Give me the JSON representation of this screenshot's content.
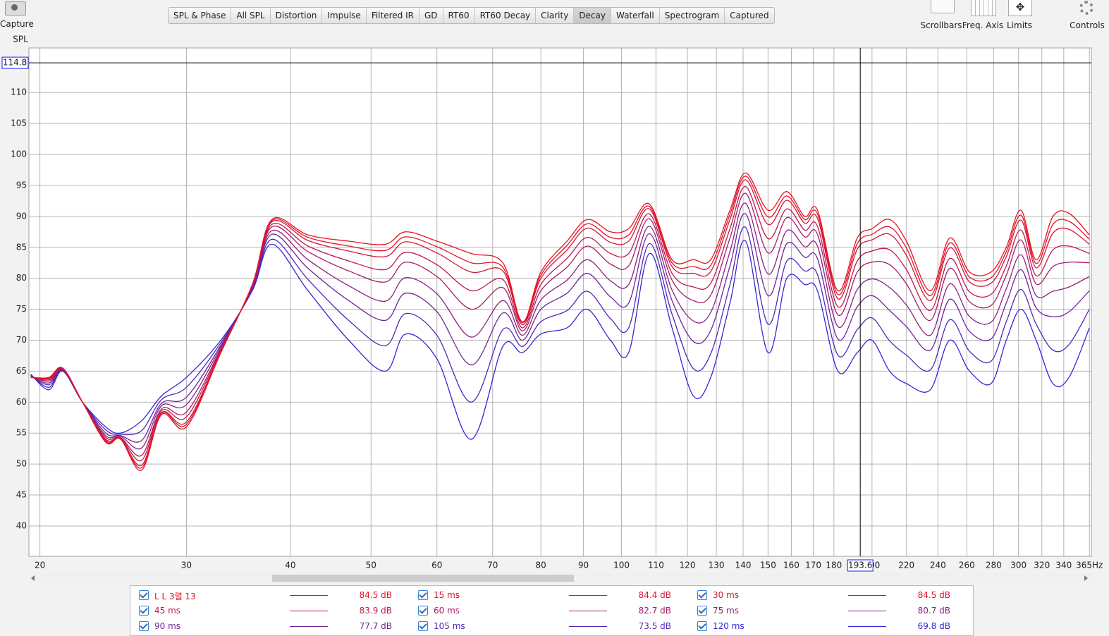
{
  "toolbar": {
    "capture": "Capture",
    "tabs": [
      {
        "label": "SPL & Phase"
      },
      {
        "label": "All SPL"
      },
      {
        "label": "Distortion"
      },
      {
        "label": "Impulse"
      },
      {
        "label": "Filtered IR"
      },
      {
        "label": "GD"
      },
      {
        "label": "RT60"
      },
      {
        "label": "RT60 Decay"
      },
      {
        "label": "Clarity"
      },
      {
        "label": "Decay",
        "active": true
      },
      {
        "label": "Waterfall"
      },
      {
        "label": "Spectrogram"
      },
      {
        "label": "Captured"
      }
    ],
    "tools": [
      "Scrollbars",
      "Freq. Axis",
      "Limits",
      "Controls"
    ]
  },
  "chart_data": {
    "type": "line",
    "ylabel": "SPL",
    "log_x": true,
    "grid": true,
    "xlim": [
      19.4,
      367
    ],
    "ylim": [
      35.1,
      117.2
    ],
    "xticks": [
      20,
      30,
      40,
      50,
      60,
      70,
      80,
      90,
      100,
      110,
      120,
      130,
      140,
      150,
      160,
      170,
      180,
      200,
      220,
      240,
      260,
      280,
      300,
      320,
      340,
      {
        "value": 365,
        "label": "365Hz"
      }
    ],
    "yticks": [
      40,
      45,
      50,
      55,
      60,
      65,
      70,
      75,
      80,
      85,
      90,
      95,
      100,
      105,
      110
    ],
    "cursor": {
      "x": 193.6,
      "y": 114.8
    },
    "x": [
      19.5,
      20.5,
      21.3,
      22.5,
      24,
      25,
      26.5,
      28,
      30,
      33,
      36,
      38,
      42,
      47,
      52,
      55,
      60,
      66,
      72,
      76,
      80,
      86,
      91,
      97,
      102,
      108,
      115,
      122,
      128,
      135,
      141,
      150,
      158,
      166,
      172,
      182,
      192,
      200,
      210,
      220,
      235,
      248,
      262,
      278,
      290,
      302,
      315,
      330,
      345,
      365
    ],
    "series": [
      {
        "name": "L L 3렬 13",
        "color": "#e81420",
        "legend_value": "84.5 dB",
        "values": [
          64,
          64,
          65.5,
          60,
          53.5,
          54,
          49,
          58,
          56,
          68,
          79,
          89.5,
          87,
          86,
          85.5,
          87.5,
          86,
          84,
          82.5,
          73,
          81,
          86,
          89.5,
          87.5,
          88,
          92,
          83,
          83,
          83,
          91,
          97,
          91,
          94,
          90,
          91,
          78,
          86.5,
          88,
          89.5,
          86,
          78,
          86.5,
          81,
          81,
          85,
          91,
          83,
          90,
          90.5,
          87
        ]
      },
      {
        "name": "15 ms",
        "color": "#e0142c",
        "legend_value": "84.4 dB",
        "values": [
          64,
          63.9,
          65.5,
          60,
          53.6,
          54.1,
          49.4,
          58.2,
          56.4,
          68.1,
          79,
          89.3,
          86.6,
          85.2,
          84.5,
          86.7,
          85.1,
          82.5,
          81.8,
          72.8,
          80.5,
          85.3,
          88.8,
          86.6,
          87,
          91.6,
          82.5,
          81.9,
          82.1,
          90.3,
          96.5,
          89.9,
          93.3,
          89.5,
          90.4,
          77.4,
          85.6,
          87.1,
          88.3,
          84.9,
          77.2,
          85.7,
          80.2,
          80.1,
          84.3,
          90.2,
          82.4,
          88.7,
          89.2,
          86.3
        ]
      },
      {
        "name": "30 ms",
        "color": "#d41638",
        "legend_value": "84.5 dB",
        "values": [
          64.1,
          63.8,
          65.5,
          60,
          53.8,
          54.1,
          49.8,
          58.3,
          56.8,
          68.2,
          78.9,
          89.1,
          86.1,
          84.4,
          83.5,
          85.9,
          84.1,
          81,
          81.2,
          72.5,
          80,
          84.6,
          88.1,
          85.8,
          86,
          91.2,
          81.9,
          80.8,
          81.1,
          89.5,
          95.9,
          88.7,
          92.6,
          88.9,
          89.7,
          76.7,
          84.7,
          86.2,
          87.1,
          83.7,
          76.4,
          84.9,
          79.4,
          79.2,
          83.5,
          89.4,
          81.7,
          87.3,
          87.9,
          85.5
        ]
      },
      {
        "name": "45 ms",
        "color": "#c01850",
        "legend_value": "83.9 dB",
        "values": [
          64.1,
          63.6,
          65.4,
          60,
          54,
          54.2,
          50.6,
          58.6,
          57.6,
          68.4,
          78.8,
          88.7,
          85.2,
          82.8,
          81.4,
          84.2,
          82.2,
          78,
          79.8,
          72,
          79,
          83.2,
          86.6,
          84,
          84,
          90.4,
          80.8,
          78.6,
          79.2,
          88,
          94.8,
          86.4,
          91.2,
          87.8,
          88.4,
          75.4,
          82.8,
          84.4,
          84.6,
          81.4,
          74.8,
          83.2,
          77.8,
          77.4,
          82,
          87.8,
          80.4,
          84.6,
          85.2,
          84
        ]
      },
      {
        "name": "60 ms",
        "color": "#a81c68",
        "legend_value": "82.7 dB",
        "values": [
          64.2,
          63.4,
          65.4,
          60,
          54.3,
          54.3,
          51.4,
          58.9,
          58.4,
          68.6,
          78.7,
          88.3,
          84.3,
          81.2,
          79.4,
          82.6,
          80.3,
          75,
          78.5,
          71.5,
          78,
          81.8,
          85.2,
          82.3,
          82,
          89.6,
          79.7,
          76.4,
          77.3,
          86.5,
          93.7,
          84.1,
          89.8,
          86.7,
          87.1,
          74.1,
          81,
          82.6,
          82.2,
          79.1,
          73.2,
          81.6,
          76.2,
          75.6,
          80.5,
          86.2,
          79.1,
          81.9,
          82.6,
          82.5
        ]
      },
      {
        "name": "75 ms",
        "color": "#8e2080",
        "legend_value": "80.7 dB",
        "values": [
          64.2,
          63.1,
          65.3,
          60,
          54.6,
          54.5,
          52.6,
          59.4,
          59.6,
          68.9,
          78.6,
          87.7,
          83,
          78.8,
          76.3,
          80.1,
          77.5,
          70.5,
          76.4,
          70.8,
          76.5,
          79.7,
          83,
          79.6,
          79,
          88.4,
          78.1,
          73.1,
          74.5,
          84.3,
          92.1,
          80.7,
          87.7,
          85.1,
          85.2,
          72.2,
          78.2,
          79.9,
          78.5,
          75.7,
          70.8,
          79.1,
          73.8,
          72.9,
          78.3,
          83.8,
          77.2,
          77.9,
          78.6,
          80.3
        ]
      },
      {
        "name": "90 ms",
        "color": "#702498",
        "legend_value": "77.7 dB",
        "values": [
          64.3,
          62.8,
          65.2,
          60,
          55,
          54.6,
          53.8,
          59.8,
          60.8,
          69.2,
          78.4,
          87.1,
          81.6,
          76.4,
          73.2,
          77.6,
          74.6,
          66,
          74.4,
          70,
          75,
          77.6,
          80.8,
          77,
          76,
          87.2,
          76.4,
          69.8,
          71.6,
          82,
          90.4,
          77.2,
          85.6,
          83.4,
          83.2,
          70.2,
          75.4,
          77.2,
          74.8,
          72.2,
          68.4,
          76.6,
          71.4,
          70.2,
          76,
          81.4,
          75.2,
          73.8,
          74.6,
          78
        ]
      },
      {
        "name": "105 ms",
        "color": "#5028b8",
        "legend_value": "73.5 dB",
        "values": [
          64.4,
          62.4,
          65.1,
          60,
          55.5,
          54.8,
          55.4,
          60.4,
          62.4,
          69.6,
          78.2,
          86.3,
          79.8,
          73.2,
          69.1,
          74.3,
          70.8,
          60,
          71.7,
          69,
          73,
          74.8,
          77.9,
          73.5,
          72,
          85.6,
          74.2,
          65.4,
          67.8,
          79,
          88.2,
          72.6,
          82.8,
          81.2,
          80.6,
          67.6,
          71.7,
          73.6,
          69.9,
          67.6,
          65.2,
          73.3,
          68.2,
          66.6,
          73,
          78.2,
          72.6,
          68.4,
          69.3,
          75
        ]
      },
      {
        "name": "120 ms",
        "color": "#3326d8",
        "legend_value": "69.8 dB",
        "values": [
          64.5,
          62,
          65,
          60,
          56,
          55,
          57,
          61,
          64,
          70,
          78,
          85.5,
          78,
          70,
          65,
          71,
          67,
          54,
          69,
          68,
          71,
          72,
          75,
          70,
          68,
          84,
          72,
          61,
          64,
          76,
          86,
          68,
          80,
          79,
          78,
          65,
          68,
          70,
          65,
          63,
          62,
          70,
          65,
          63,
          70,
          75,
          70,
          63,
          64,
          72
        ]
      }
    ]
  }
}
